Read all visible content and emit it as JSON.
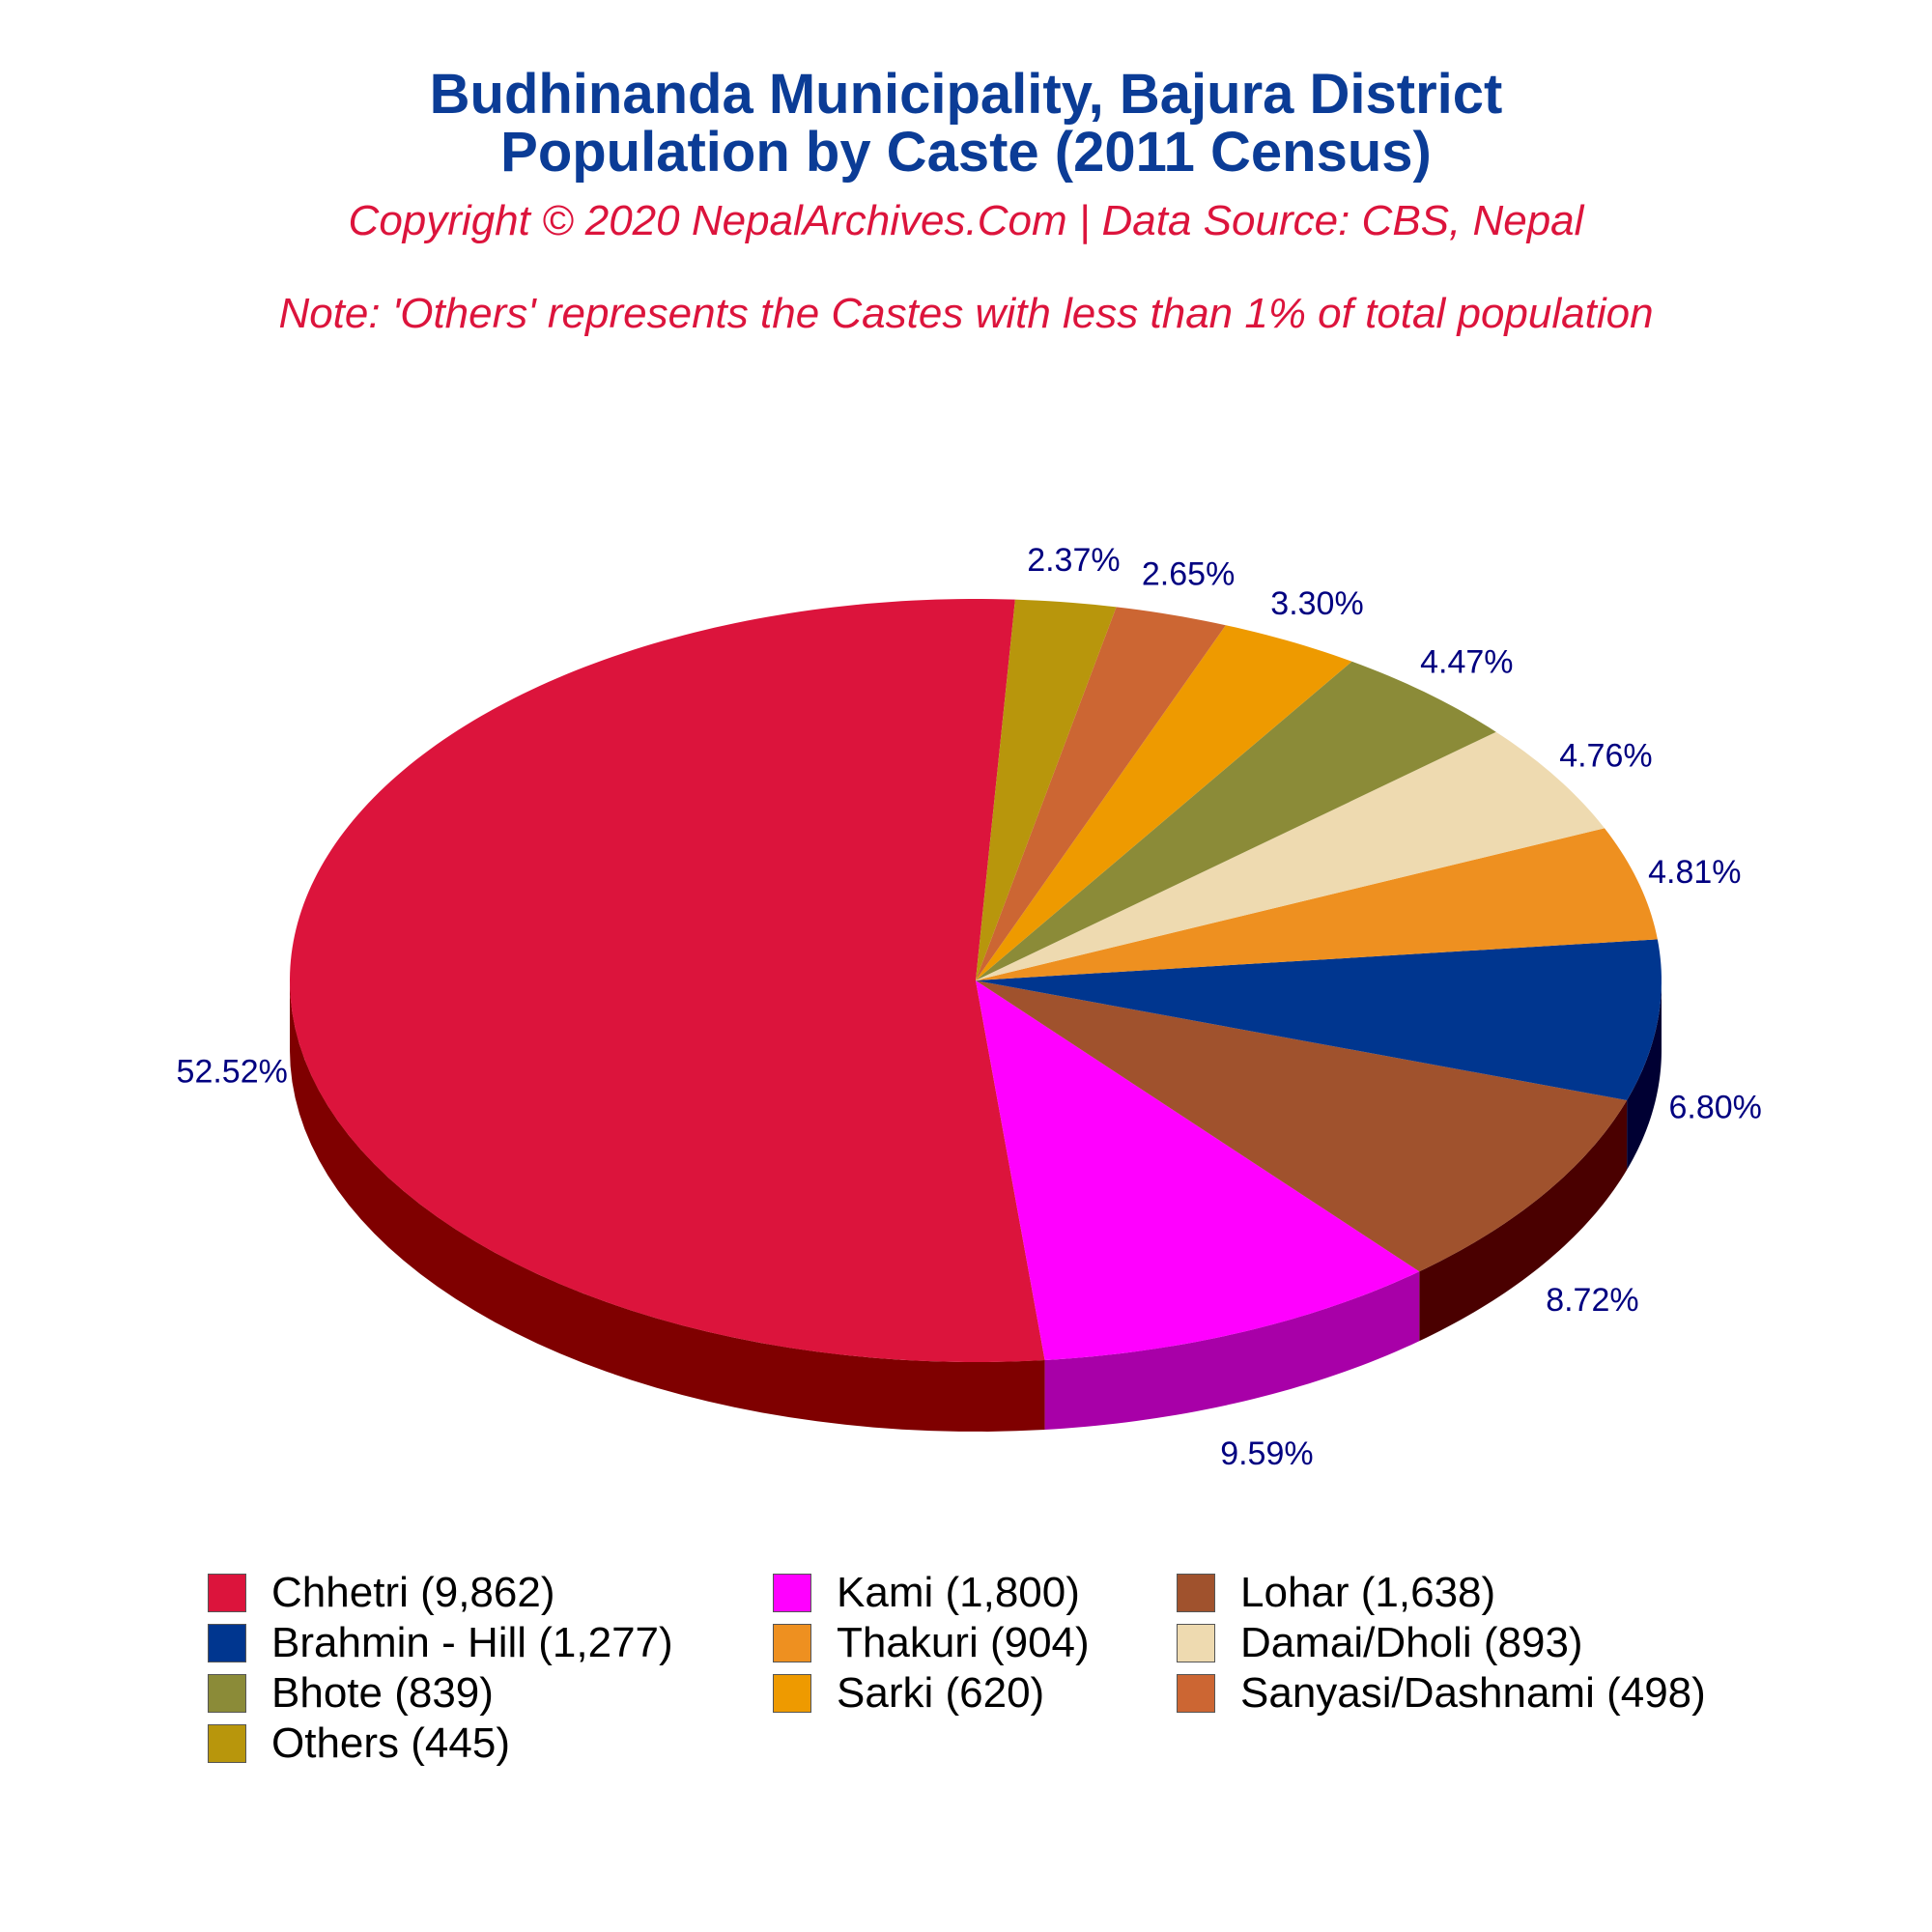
{
  "title_lines": [
    "Budhinanda Municipality, Bajura District",
    "Population by Caste (2011 Census)"
  ],
  "subtitle": "Copyright © 2020 NepalArchives.Com | Data Source: CBS, Nepal",
  "note": "Note: 'Others' represents the Castes with less than 1% of total population",
  "chart_data": {
    "type": "pie",
    "style": "3d",
    "categories": [
      "Chhetri",
      "Kami",
      "Lohar",
      "Brahmin - Hill",
      "Thakuri",
      "Damai/Dholi",
      "Bhote",
      "Sarki",
      "Sanyasi/Dashnami",
      "Others"
    ],
    "values": [
      9862,
      1800,
      1638,
      1277,
      904,
      893,
      839,
      620,
      498,
      445
    ],
    "percent_labels": [
      "52.52%",
      "9.59%",
      "8.72%",
      "6.80%",
      "4.81%",
      "4.76%",
      "4.47%",
      "3.30%",
      "2.65%",
      "2.37%"
    ],
    "legend_labels": [
      "Chhetri (9,862)",
      "Kami (1,800)",
      "Lohar (1,638)",
      "Brahmin - Hill (1,277)",
      "Thakuri (904)",
      "Damai/Dholi (893)",
      "Bhote (839)",
      "Sarki (620)",
      "Sanyasi/Dashnami (498)",
      "Others (445)"
    ],
    "colors": [
      "#dc143c",
      "#ff00ff",
      "#a0522d",
      "#00368f",
      "#ee9020",
      "#eedab0",
      "#8b8b38",
      "#ee9a00",
      "#cc6633",
      "#b8960c"
    ],
    "side_colors": [
      "#7f0000",
      "#a800a8",
      "#4a0000",
      "#000033",
      "#8b3000",
      "#958050",
      "#303000",
      "#8b4500",
      "#703010",
      "#5e4a00"
    ],
    "legend_placement": "bottom"
  }
}
